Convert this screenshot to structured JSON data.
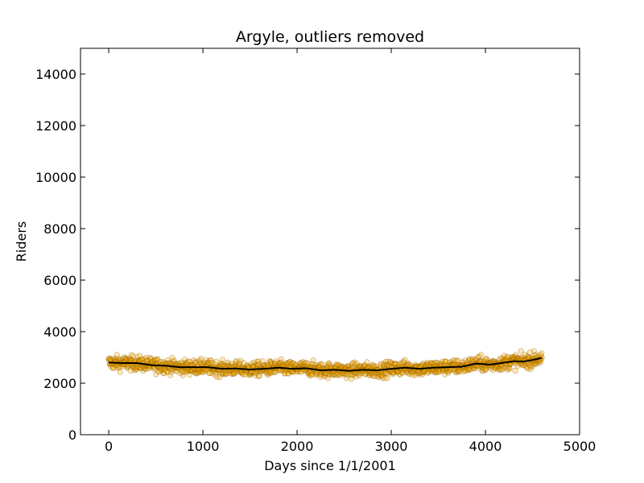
{
  "chart_data": {
    "type": "scatter",
    "title": "Argyle, outliers removed",
    "xlabel": "Days since 1/1/2001",
    "ylabel": "Riders",
    "xlim": [
      -300,
      5000
    ],
    "ylim": [
      0,
      15000
    ],
    "xticks": [
      0,
      1000,
      2000,
      3000,
      4000,
      5000
    ],
    "yticks": [
      0,
      2000,
      4000,
      6000,
      8000,
      10000,
      12000,
      14000
    ],
    "grid": false,
    "legend": "none",
    "point_color": "#ffb000",
    "point_edge_color": "#8a5a00",
    "line_color": "#000000",
    "series": [
      {
        "kind": "scatter",
        "x_range": [
          0,
          4600
        ],
        "approx_daily_points": true,
        "trend_reference": "smoothed"
      },
      {
        "kind": "line",
        "x": [
          0,
          150,
          300,
          450,
          600,
          750,
          900,
          1050,
          1200,
          1350,
          1500,
          1650,
          1800,
          1950,
          2100,
          2250,
          2400,
          2550,
          2700,
          2850,
          3000,
          3150,
          3300,
          3450,
          3600,
          3750,
          3900,
          4050,
          4200,
          4300,
          4400,
          4500,
          4600
        ],
        "y": [
          2800,
          2780,
          2780,
          2700,
          2680,
          2620,
          2620,
          2620,
          2560,
          2570,
          2530,
          2560,
          2600,
          2560,
          2580,
          2500,
          2520,
          2480,
          2520,
          2500,
          2560,
          2600,
          2560,
          2600,
          2620,
          2640,
          2760,
          2720,
          2800,
          2850,
          2840,
          2900,
          2980
        ]
      }
    ]
  }
}
